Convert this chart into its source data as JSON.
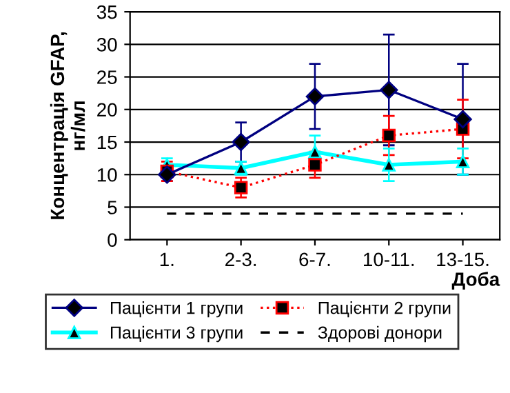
{
  "chart_data": {
    "type": "line",
    "xlabel": "Доба",
    "ylabel": "Концентрація GFAP,\nнг/мл",
    "categories": [
      "1.",
      "2-3.",
      "6-7.",
      "10-11.",
      "13-15."
    ],
    "ylim": [
      0,
      35
    ],
    "yticks": [
      0,
      5,
      10,
      15,
      20,
      25,
      30,
      35
    ],
    "grid": "y",
    "legend": "bottom",
    "series": [
      {
        "name": "Пацієнти 1 групи",
        "color": "#000080",
        "marker": "diamond",
        "line_style": "solid",
        "values": [
          10,
          15,
          22,
          23,
          18.5
        ],
        "errors": [
          1,
          3,
          5,
          8.5,
          8.5
        ]
      },
      {
        "name": "Пацієнти 2 групи",
        "color": "#ff0000",
        "marker": "square",
        "line_style": "dotted",
        "values": [
          10.5,
          8,
          11.5,
          16,
          17
        ],
        "errors": [
          1.5,
          1.5,
          2,
          3,
          4.5
        ]
      },
      {
        "name": "Пацієнти 3 групи",
        "color": "#00ffff",
        "marker": "triangle",
        "line_style": "solid",
        "values": [
          11.5,
          11,
          13.5,
          11.5,
          12
        ],
        "errors": [
          1,
          1,
          2.5,
          2.5,
          2
        ]
      },
      {
        "name": "Здорові донори",
        "color": "#000000",
        "marker": "none",
        "line_style": "dashed",
        "values": [
          4,
          4,
          4,
          4,
          4
        ]
      }
    ]
  }
}
